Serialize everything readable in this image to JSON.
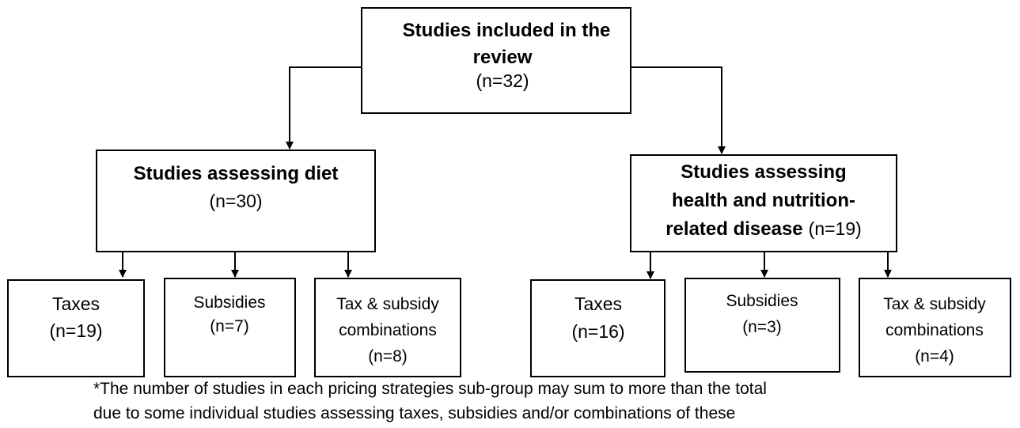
{
  "nodes": [
    {
      "label_lines": [
        "Studies included in the",
        "review"
      ],
      "count": "(n=32)"
    },
    {
      "label_lines": [
        "Studies assessing diet"
      ],
      "count": "(n=30)"
    },
    {
      "label_lines": [
        "Studies assessing",
        "health and nutrition-",
        "related disease"
      ],
      "count": "(n=19)"
    },
    {
      "label_lines": [
        "Taxes"
      ],
      "count": "(n=19)"
    },
    {
      "label_lines": [
        "Subsidies"
      ],
      "count": "(n=7)"
    },
    {
      "label_lines": [
        "Tax & subsidy",
        "combinations"
      ],
      "count": "(n=8)"
    },
    {
      "label_lines": [
        "Taxes"
      ],
      "count": "(n=16)"
    },
    {
      "label_lines": [
        "Subsidies"
      ],
      "count": "(n=3)"
    },
    {
      "label_lines": [
        "Tax & subsidy",
        "combinations"
      ],
      "count": "(n=4)"
    }
  ],
  "footnote": [
    "*The number of studies in each pricing strategies sub-group may sum to more than the total",
    "due to some individual studies assessing taxes, subsidies and/or combinations of these"
  ]
}
